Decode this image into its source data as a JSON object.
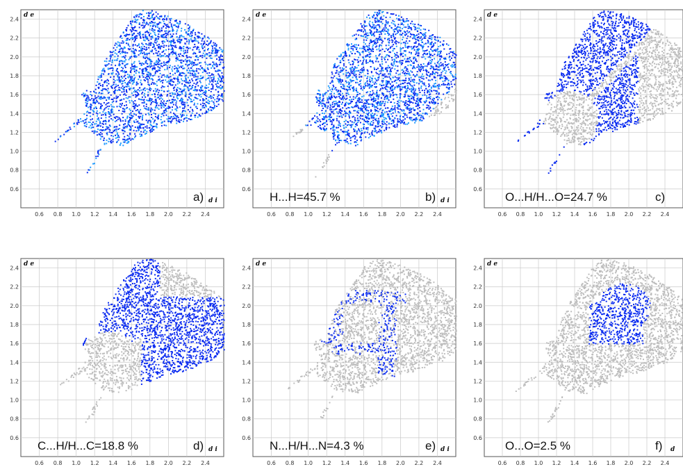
{
  "palette": {
    "grey": "#bdbdbd",
    "blue": "#0a2bf0",
    "cyan": "#1e9bff",
    "grid": "#c8c8c8",
    "frame": "#555555"
  },
  "chart_data": [
    {
      "type": "scatter",
      "panel_letter": "a)",
      "caption": "",
      "ylabel": "d e",
      "xlabel": "d i",
      "xlim": [
        0.4,
        2.6
      ],
      "ylim": [
        0.4,
        2.5
      ],
      "x_ticks": [
        "0.6",
        "0.8",
        "1.0",
        "1.2",
        "1.4",
        "1.6",
        "1.8",
        "2.0",
        "2.2",
        "2.4"
      ],
      "y_ticks": [
        "0.6",
        "0.8",
        "1.0",
        "1.2",
        "1.4",
        "1.6",
        "1.8",
        "2.0",
        "2.2",
        "2.4"
      ],
      "fingerprint": "full",
      "highlight_color": "cyan-blue"
    },
    {
      "type": "scatter",
      "panel_letter": "b)",
      "caption": "H...H=45.7 %",
      "contact": "H...H",
      "percent": 45.7,
      "ylabel": "d e",
      "xlabel": "d i",
      "xlim": [
        0.4,
        2.6
      ],
      "ylim": [
        0.4,
        2.5
      ],
      "x_ticks": [
        "0.6",
        "0.8",
        "1.0",
        "1.2",
        "1.4",
        "1.6",
        "1.8",
        "2.0",
        "2.2",
        "2.4"
      ],
      "y_ticks": [
        "0.6",
        "0.8",
        "1.0",
        "1.2",
        "1.4",
        "1.6",
        "1.8",
        "2.0",
        "2.2",
        "2.4"
      ],
      "fingerprint": "H...H"
    },
    {
      "type": "scatter",
      "panel_letter": "c)",
      "caption": "O...H/H...O=24.7 %",
      "contact": "O...H/H...O",
      "percent": 24.7,
      "ylabel": "d e",
      "xlabel": "",
      "xlim": [
        0.4,
        2.6
      ],
      "ylim": [
        0.4,
        2.5
      ],
      "x_ticks": [
        "0.6",
        "0.8",
        "1.0",
        "1.2",
        "1.4",
        "1.6",
        "1.8",
        "2.0",
        "2.2",
        "2.4"
      ],
      "y_ticks": [
        "0.6",
        "0.8",
        "1.0",
        "1.2",
        "1.4",
        "1.6",
        "1.8",
        "2.0",
        "2.2",
        "2.4"
      ],
      "fingerprint": "O...H"
    },
    {
      "type": "scatter",
      "panel_letter": "d)",
      "caption": "C...H/H...C=18.8 %",
      "contact": "C...H/H...C",
      "percent": 18.8,
      "ylabel": "d e",
      "xlabel": "d i",
      "xlim": [
        0.4,
        2.6
      ],
      "ylim": [
        0.4,
        2.5
      ],
      "x_ticks": [
        "0.6",
        "0.8",
        "1.0",
        "1.2",
        "1.4",
        "1.6",
        "1.8",
        "2.0",
        "2.2",
        "2.4"
      ],
      "y_ticks": [
        "0.6",
        "0.8",
        "1.0",
        "1.2",
        "1.4",
        "1.6",
        "1.8",
        "2.0",
        "2.2",
        "2.4"
      ],
      "fingerprint": "C...H"
    },
    {
      "type": "scatter",
      "panel_letter": "e)",
      "caption": "N...H/H...N=4.3 %",
      "contact": "N...H/H...N",
      "percent": 4.3,
      "ylabel": "d e",
      "xlabel": "d i",
      "xlim": [
        0.4,
        2.6
      ],
      "ylim": [
        0.4,
        2.5
      ],
      "x_ticks": [
        "0.6",
        "0.8",
        "1.0",
        "1.2",
        "1.4",
        "1.6",
        "1.8",
        "2.0",
        "2.2",
        "2.4"
      ],
      "y_ticks": [
        "0.6",
        "0.8",
        "1.0",
        "1.2",
        "1.4",
        "1.6",
        "1.8",
        "2.0",
        "2.2",
        "2.4"
      ],
      "fingerprint": "N...H"
    },
    {
      "type": "scatter",
      "panel_letter": "f)",
      "caption": "O...O=2.5 %",
      "contact": "O...O",
      "percent": 2.5,
      "ylabel": "d e",
      "xlabel": "d",
      "xlim": [
        0.4,
        2.6
      ],
      "ylim": [
        0.4,
        2.5
      ],
      "x_ticks": [
        "0.6",
        "0.8",
        "1.0",
        "1.2",
        "1.4",
        "1.6",
        "1.8",
        "2.0",
        "2.2",
        "2.4"
      ],
      "y_ticks": [
        "0.6",
        "0.8",
        "1.0",
        "1.2",
        "1.4",
        "1.6",
        "1.8",
        "2.0",
        "2.2",
        "2.4"
      ],
      "fingerprint": "O...O"
    }
  ]
}
